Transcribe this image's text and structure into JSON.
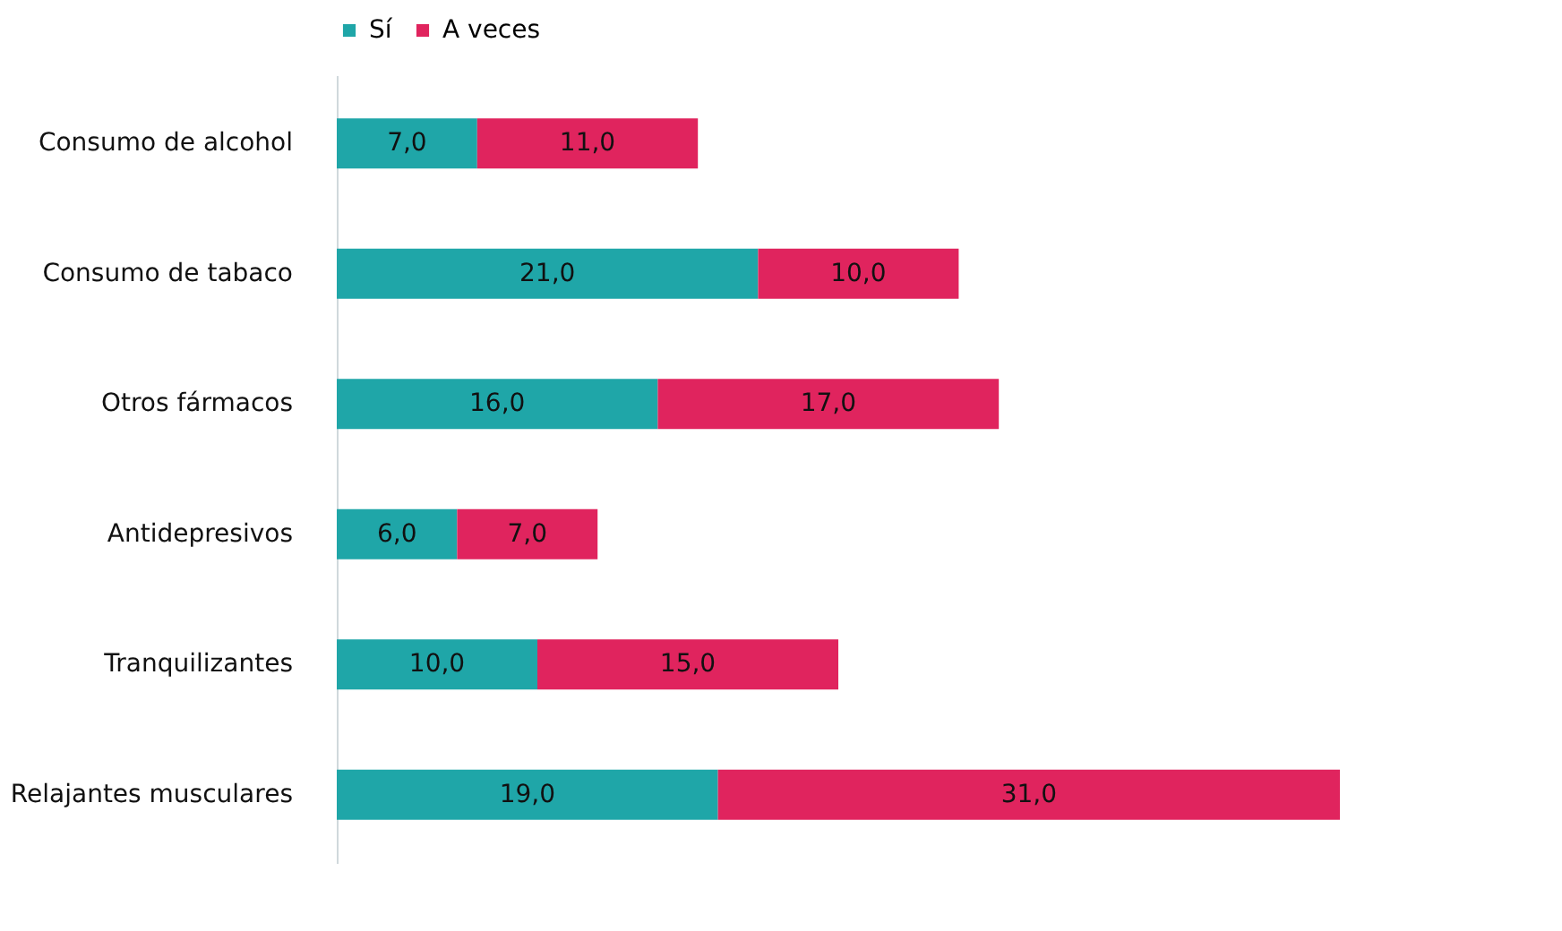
{
  "chart_data": {
    "type": "bar",
    "orientation": "horizontal",
    "stacked": true,
    "legend": "top",
    "grid": false,
    "categories": [
      "Consumo de alcohol",
      "Consumo de tabaco",
      "Otros fármacos",
      "Antidepresivos",
      "Tranquilizantes",
      "Relajantes musculares"
    ],
    "series": [
      {
        "name": "Sí",
        "color": "#1fa6a8",
        "values": [
          7,
          21,
          16,
          6,
          10,
          19
        ],
        "value_labels": [
          "7,0",
          "21,0",
          "16,0",
          "6,0",
          "10,0",
          "19,0"
        ]
      },
      {
        "name": "A veces",
        "color": "#e0245e",
        "values": [
          11,
          10,
          17,
          7,
          15,
          31
        ],
        "value_labels": [
          "11,0",
          "10,0",
          "17,0",
          "7,0",
          "15,0",
          "31,0"
        ]
      }
    ]
  }
}
